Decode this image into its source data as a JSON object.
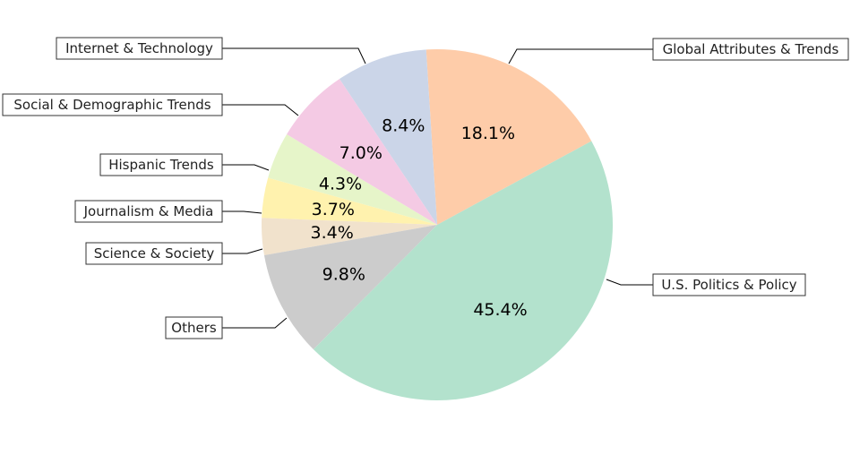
{
  "chart_data": {
    "type": "pie",
    "title": "",
    "slices": [
      {
        "label": "Global Attributes & Trends",
        "value": 18.1,
        "display": "18.1%",
        "color": "#fecca9"
      },
      {
        "label": "Internet & Technology",
        "value": 8.4,
        "display": "8.4%",
        "color": "#cbd5e8"
      },
      {
        "label": "Social & Demographic Trends",
        "value": 7.0,
        "display": "7.0%",
        "color": "#f4cae4"
      },
      {
        "label": "Hispanic Trends",
        "value": 4.3,
        "display": "4.3%",
        "color": "#e6f5c9"
      },
      {
        "label": "Journalism & Media",
        "value": 3.7,
        "display": "3.7%",
        "color": "#fff2ae"
      },
      {
        "label": "Science & Society",
        "value": 3.4,
        "display": "3.4%",
        "color": "#f1e2cc"
      },
      {
        "label": "Others",
        "value": 9.8,
        "display": "9.8%",
        "color": "#cccccc"
      },
      {
        "label": "U.S. Politics & Policy",
        "value": 45.4,
        "display": "45.4%",
        "color": "#b3e2cd"
      }
    ],
    "start_angle_deg": -28.5,
    "direction": "counterclockwise",
    "legend": "none",
    "label_style": "callout boxes with leader lines"
  }
}
